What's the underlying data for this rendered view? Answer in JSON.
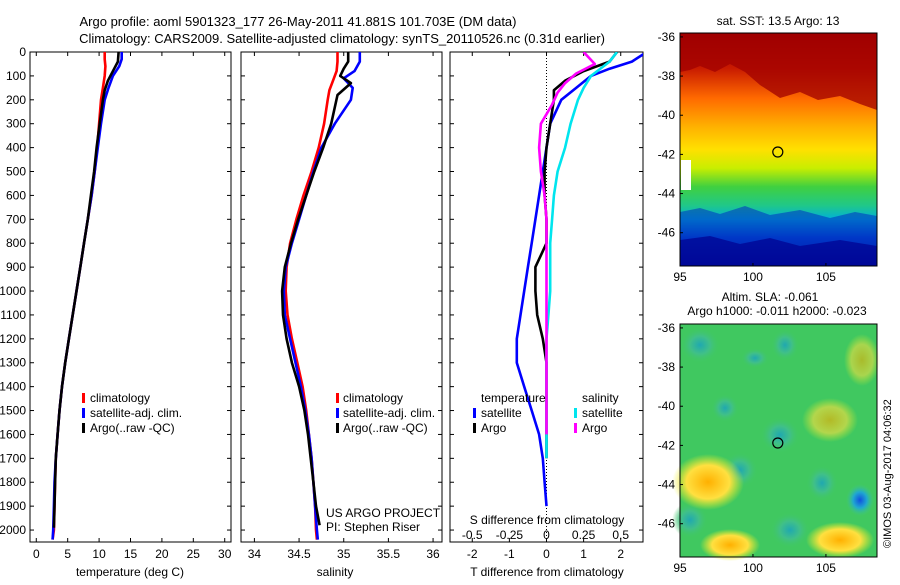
{
  "header": {
    "line1": "Argo profile: aoml 5901323_177 26-May-2011 41.881S 101.703E (DM data)",
    "line2": "Climatology: CARS2009. Satellite-adjusted climatology: synTS_20110526.nc (0.31d earlier)"
  },
  "colors": {
    "climatology": "#ff0000",
    "satellite": "#0000ff",
    "argo": "#000000",
    "s_satellite": "#00e5ee",
    "s_argo": "#ff00ff"
  },
  "chart_data": [
    {
      "type": "line",
      "id": "temperature",
      "xlabel": "temperature (deg C)",
      "ylabel": "",
      "xlim": [
        -1,
        31
      ],
      "ylim": [
        2050,
        0
      ],
      "xticks": [
        0,
        5,
        10,
        15,
        20,
        25,
        30
      ],
      "yticks": [
        0,
        100,
        200,
        300,
        400,
        500,
        600,
        700,
        800,
        900,
        1000,
        1100,
        1200,
        1300,
        1400,
        1500,
        1600,
        1700,
        1800,
        1900,
        2000
      ],
      "legend": [
        "climatology",
        "satellite-adj. clim.",
        "Argo(..raw -QC)"
      ],
      "legend_position": "center-right",
      "series": [
        {
          "name": "climatology",
          "color": "#ff0000",
          "x": [
            10.9,
            10.9,
            11.0,
            10.9,
            10.6,
            10.3,
            10.0,
            9.7,
            9.3,
            8.8,
            8.2,
            7.6,
            7.0,
            6.4,
            5.8,
            5.2,
            4.6,
            4.1,
            3.7,
            3.4,
            3.1,
            3.0,
            2.9,
            2.8,
            2.6
          ],
          "y": [
            0,
            30,
            60,
            100,
            150,
            200,
            300,
            400,
            500,
            600,
            700,
            800,
            900,
            1000,
            1100,
            1200,
            1300,
            1400,
            1500,
            1600,
            1700,
            1800,
            1900,
            2000,
            2040
          ]
        },
        {
          "name": "satellite-adj. clim.",
          "color": "#0000ff",
          "x": [
            13.6,
            13.6,
            13.2,
            12.2,
            11.5,
            10.9,
            10.3,
            9.8,
            9.3,
            8.8,
            8.2,
            7.6,
            7.0,
            6.4,
            5.8,
            5.2,
            4.6,
            4.1,
            3.7,
            3.4,
            3.1,
            2.9,
            2.8,
            2.7,
            2.6
          ],
          "y": [
            0,
            30,
            60,
            100,
            150,
            200,
            300,
            400,
            500,
            600,
            700,
            800,
            900,
            1000,
            1100,
            1200,
            1300,
            1400,
            1500,
            1600,
            1700,
            1800,
            1900,
            2000,
            2040
          ]
        },
        {
          "name": "Argo(..raw -QC)",
          "color": "#000000",
          "x": [
            13.1,
            13.0,
            12.4,
            11.4,
            10.9,
            10.6,
            10.1,
            9.6,
            9.2,
            8.7,
            8.2,
            7.6,
            7.0,
            6.4,
            5.8,
            5.2,
            4.6,
            4.1,
            3.7,
            3.4,
            3.1,
            3.0,
            2.9,
            2.8
          ],
          "y": [
            0,
            40,
            70,
            120,
            160,
            200,
            300,
            400,
            500,
            600,
            700,
            800,
            900,
            1000,
            1100,
            1200,
            1300,
            1400,
            1500,
            1600,
            1700,
            1800,
            1900,
            1990
          ]
        }
      ]
    },
    {
      "type": "line",
      "id": "salinity",
      "xlabel": "salinity",
      "ylabel": "",
      "xlim": [
        33.85,
        36.1
      ],
      "ylim": [
        2050,
        0
      ],
      "xticks": [
        34,
        34.5,
        35,
        35.5,
        36
      ],
      "legend": [
        "climatology",
        "satellite-adj. clim.",
        "Argo(..raw -QC)"
      ],
      "legend_position": "center-right",
      "annotation": [
        "US ARGO PROJECT",
        "PI: Stephen Riser"
      ],
      "series": [
        {
          "name": "climatology",
          "color": "#ff0000",
          "x": [
            34.93,
            34.93,
            34.92,
            34.88,
            34.84,
            34.82,
            34.78,
            34.72,
            34.64,
            34.55,
            34.47,
            34.4,
            34.36,
            34.35,
            34.37,
            34.42,
            34.48,
            34.54,
            34.58,
            34.61,
            34.64,
            34.66,
            34.68,
            34.69,
            34.7
          ],
          "y": [
            0,
            40,
            80,
            120,
            160,
            200,
            300,
            400,
            500,
            600,
            700,
            800,
            900,
            1000,
            1100,
            1200,
            1300,
            1400,
            1500,
            1600,
            1700,
            1800,
            1900,
            2000,
            2040
          ]
        },
        {
          "name": "satellite-adj. clim.",
          "color": "#0000ff",
          "x": [
            35.18,
            35.18,
            35.12,
            35.0,
            35.1,
            35.08,
            34.9,
            34.75,
            34.66,
            34.58,
            34.5,
            34.42,
            34.35,
            34.33,
            34.34,
            34.4,
            34.46,
            34.52,
            34.57,
            34.61,
            34.64,
            34.66,
            34.68,
            34.7,
            34.71
          ],
          "y": [
            0,
            40,
            80,
            110,
            150,
            200,
            300,
            400,
            500,
            600,
            700,
            800,
            900,
            1000,
            1100,
            1200,
            1300,
            1400,
            1500,
            1600,
            1700,
            1800,
            1900,
            2000,
            2040
          ]
        },
        {
          "name": "Argo(..raw -QC)",
          "color": "#000000",
          "x": [
            35.05,
            35.05,
            35.0,
            34.96,
            35.08,
            34.93,
            34.86,
            34.77,
            34.67,
            34.58,
            34.49,
            34.41,
            34.34,
            34.31,
            34.32,
            34.36,
            34.42,
            34.5,
            34.56,
            34.6,
            34.63,
            34.66,
            34.69,
            34.73
          ],
          "y": [
            0,
            40,
            70,
            100,
            130,
            180,
            300,
            400,
            500,
            600,
            700,
            800,
            900,
            1000,
            1100,
            1200,
            1300,
            1400,
            1500,
            1600,
            1700,
            1800,
            1900,
            1980
          ]
        }
      ]
    },
    {
      "type": "line",
      "id": "difference",
      "xlabel": "T difference from climatology",
      "xlabel2": "S difference from climatology",
      "ylabel": "",
      "xlim": [
        -2.6,
        2.6
      ],
      "ylim": [
        2050,
        0
      ],
      "xticks": [
        -2,
        -1,
        0,
        1,
        2
      ],
      "xticks_s": [
        -0.5,
        -0.25,
        0,
        0.25,
        0.5
      ],
      "xtick_labels_s": [
        "-0.5",
        "-0.25",
        "0",
        "0.25",
        "0.5"
      ],
      "legend_titles": [
        "temperature",
        "salinity"
      ],
      "legend": [
        "satellite",
        "Argo",
        "satellite",
        "Argo"
      ],
      "legend_position": "center",
      "series": [
        {
          "name": "temperature satellite",
          "color": "#0000ff",
          "x": [
            2.7,
            2.3,
            1.7,
            1.2,
            0.8,
            0.4,
            0.1,
            0.0,
            -0.1,
            -0.2,
            -0.3,
            -0.4,
            -0.5,
            -0.6,
            -0.7,
            -0.8,
            -0.8,
            -0.6,
            -0.4,
            -0.2,
            -0.1,
            -0.05,
            0.0
          ],
          "y": [
            0,
            40,
            70,
            100,
            150,
            200,
            300,
            400,
            500,
            600,
            700,
            800,
            900,
            1000,
            1100,
            1200,
            1300,
            1400,
            1500,
            1600,
            1700,
            1800,
            1900
          ]
        },
        {
          "name": "temperature Argo",
          "color": "#000000",
          "x": [
            1.9,
            1.7,
            1.0,
            0.5,
            0.2,
            0.2,
            0.1,
            0.0,
            -0.05,
            -0.05,
            0.0,
            0.0,
            -0.3,
            -0.3,
            -0.25,
            -0.1,
            0.0,
            0.0,
            0.0,
            0.0,
            0.0
          ],
          "y": [
            0,
            40,
            80,
            120,
            160,
            200,
            300,
            400,
            500,
            600,
            700,
            800,
            900,
            1000,
            1100,
            1200,
            1300,
            1400,
            1500,
            1600,
            1700
          ]
        },
        {
          "name": "salinity satellite",
          "color": "#00e5ee",
          "x": [
            1.9,
            1.7,
            1.2,
            1.0,
            0.85,
            0.65,
            0.5,
            0.3,
            0.2,
            0.15,
            0.1,
            0.1,
            0.1,
            0.05,
            0.0,
            0.0,
            0.0,
            0.0,
            0.0,
            0.0
          ],
          "y": [
            0,
            40,
            100,
            150,
            200,
            300,
            400,
            500,
            600,
            700,
            800,
            900,
            1000,
            1100,
            1200,
            1300,
            1400,
            1500,
            1600,
            1700
          ]
        },
        {
          "name": "salinity Argo",
          "color": "#ff00ff",
          "x": [
            1.0,
            1.3,
            0.8,
            0.5,
            0.3,
            0.15,
            -0.15,
            -0.2,
            -0.15,
            -0.05,
            0.0,
            0.0,
            0.0,
            0.0,
            0.0,
            0.0,
            0.0
          ],
          "y": [
            0,
            50,
            90,
            130,
            170,
            220,
            300,
            400,
            500,
            600,
            700,
            800,
            900,
            1000,
            1200,
            1400,
            1600
          ]
        }
      ]
    },
    {
      "type": "heatmap",
      "id": "sst-map",
      "title": "sat. SST: 13.5 Argo: 13",
      "xlim": [
        95,
        108.5
      ],
      "ylim": [
        -47.7,
        -35.8
      ],
      "xticks": [
        95,
        100,
        105
      ],
      "yticks": [
        -36,
        -38,
        -40,
        -42,
        -44,
        -46
      ],
      "marker": {
        "lon": 101.7,
        "lat": -41.88
      }
    },
    {
      "type": "heatmap",
      "id": "sla-map",
      "title": "Altim. SLA: -0.061",
      "subtitle": "Argo h1000: -0.011 h2000: -0.023",
      "xlim": [
        95,
        108.5
      ],
      "ylim": [
        -47.7,
        -35.8
      ],
      "xticks": [
        95,
        100,
        105
      ],
      "yticks": [
        -36,
        -38,
        -40,
        -42,
        -44,
        -46
      ],
      "marker": {
        "lon": 101.7,
        "lat": -41.88
      }
    }
  ],
  "footer": {
    "credit": "©IMOS 03-Aug-2017 04:06:32"
  }
}
